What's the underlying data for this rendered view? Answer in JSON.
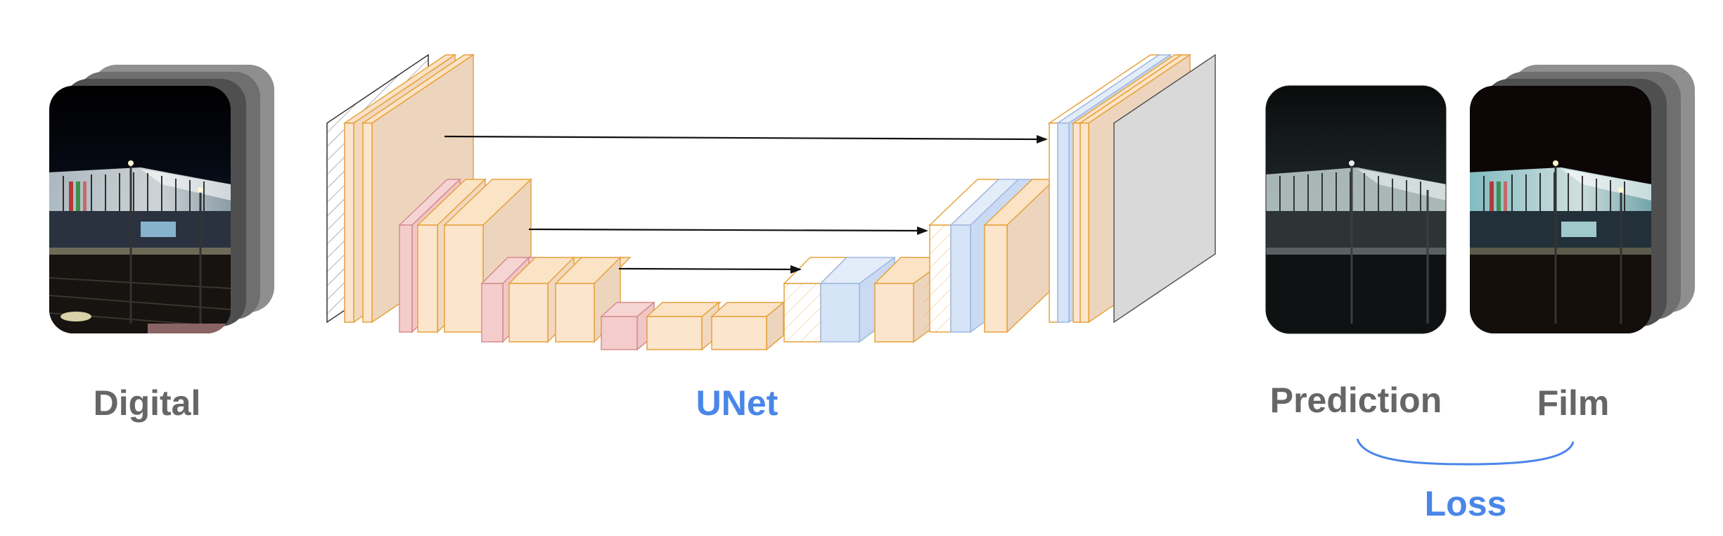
{
  "labels": {
    "digital": "Digital",
    "unet": "UNet",
    "prediction": "Prediction",
    "film": "Film",
    "loss": "Loss"
  },
  "colors": {
    "conv_fill": "#fce5cd",
    "conv_stroke": "#e6a23c",
    "pool_fill": "#f4cccc",
    "pool_stroke": "#c27b7b",
    "upsample_fill": "#d6e4f7",
    "upsample_stroke": "#9fb8e0",
    "output_fill": "#d9d9d9",
    "skip_arrow": "#111111",
    "label_gray": "#666666",
    "label_blue": "#4a86e8"
  },
  "images": {
    "input": "digital-photo",
    "prediction": "prediction-photo",
    "target": "film-photo"
  }
}
